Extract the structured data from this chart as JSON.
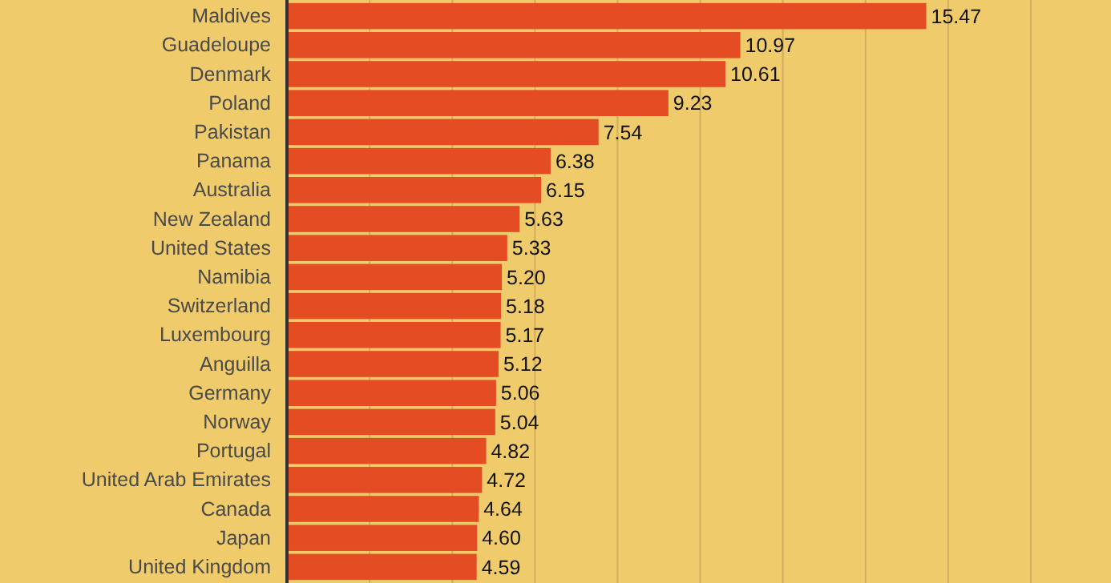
{
  "chart_data": {
    "type": "bar",
    "orientation": "horizontal",
    "categories": [
      "Maldives",
      "Guadeloupe",
      "Denmark",
      "Poland",
      "Pakistan",
      "Panama",
      "Australia",
      "New Zealand",
      "United States",
      "Namibia",
      "Switzerland",
      "Luxembourg",
      "Anguilla",
      "Germany",
      "Norway",
      "Portugal",
      "United Arab Emirates",
      "Canada",
      "Japan",
      "United Kingdom"
    ],
    "values": [
      15.47,
      10.97,
      10.61,
      9.23,
      7.54,
      6.38,
      6.15,
      5.63,
      5.33,
      5.2,
      5.18,
      5.17,
      5.12,
      5.06,
      5.04,
      4.82,
      4.72,
      4.64,
      4.6,
      4.59
    ],
    "value_labels": [
      "15.47",
      "10.97",
      "10.61",
      "9.23",
      "7.54",
      "6.38",
      "6.15",
      "5.63",
      "5.33",
      "5.20",
      "5.18",
      "5.17",
      "5.12",
      "5.06",
      "5.04",
      "4.82",
      "4.72",
      "4.64",
      "4.60",
      "4.59"
    ],
    "color": "#e44d24",
    "xlim": [
      0,
      18
    ],
    "xticks": [
      {
        "value": 0,
        "label": null
      },
      {
        "value": 2,
        "label": null
      },
      {
        "value": 4,
        "label": null
      },
      {
        "value": 6,
        "label": null
      },
      {
        "value": 8,
        "label": null
      },
      {
        "value": 10,
        "label": null
      },
      {
        "value": 12,
        "label": null
      },
      {
        "value": 14,
        "label": null
      },
      {
        "value": 16,
        "label": null
      },
      {
        "value": 18,
        "label": null
      }
    ],
    "grid": "x",
    "tick_labels": "y"
  }
}
